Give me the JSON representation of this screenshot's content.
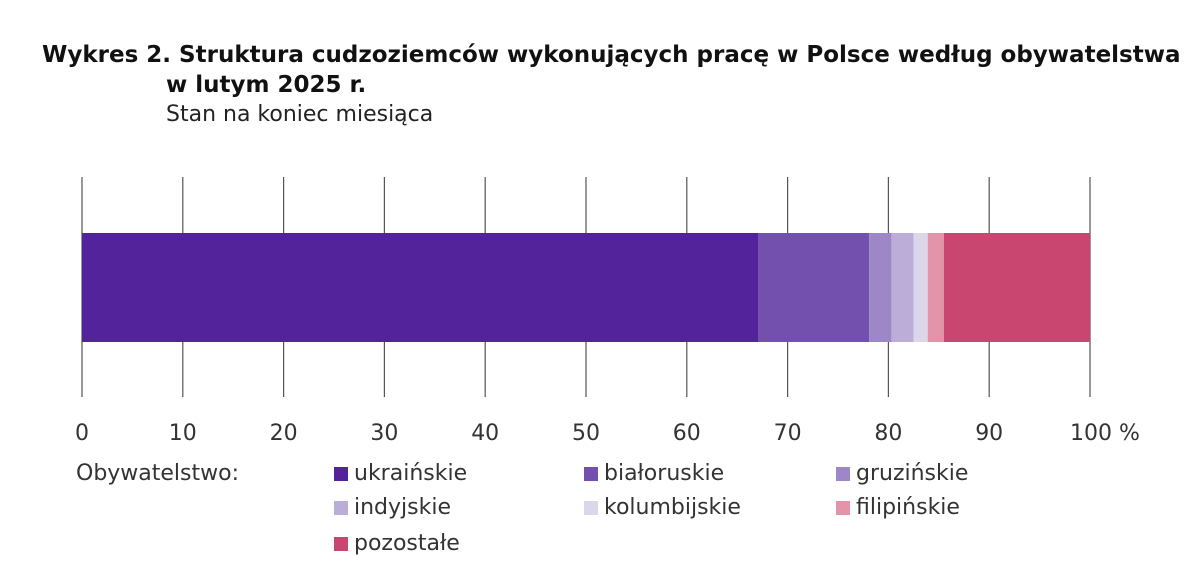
{
  "chart_data": {
    "type": "bar",
    "orientation": "horizontal",
    "stacked": "percent",
    "title": "Wykres 2. Struktura cudzoziemców wykonujących pracę w Polsce według obywatelstwa",
    "title_line2": "w lutym 2025 r.",
    "subtitle": "Stan na koniec miesiąca",
    "xlim": [
      0,
      100
    ],
    "x_ticks": [
      "0",
      "10",
      "20",
      "30",
      "40",
      "50",
      "60",
      "70",
      "80",
      "90",
      "100 %"
    ],
    "grid": true,
    "legend_title": "Obywatelstwo:",
    "legend_position": "bottom",
    "series": [
      {
        "name": "ukraińskie",
        "value": 67.1,
        "color": "#52239a"
      },
      {
        "name": "białoruskie",
        "value": 11.0,
        "color": "#7450ae"
      },
      {
        "name": "gruzińskie",
        "value": 2.2,
        "color": "#9d87c6"
      },
      {
        "name": "indyjskie",
        "value": 2.2,
        "color": "#bcadd8"
      },
      {
        "name": "kolumbijskie",
        "value": 1.4,
        "color": "#dcd6ea"
      },
      {
        "name": "filipińskie",
        "value": 1.6,
        "color": "#e394a9"
      },
      {
        "name": "pozostałe",
        "value": 14.5,
        "color": "#c8466f"
      }
    ]
  }
}
